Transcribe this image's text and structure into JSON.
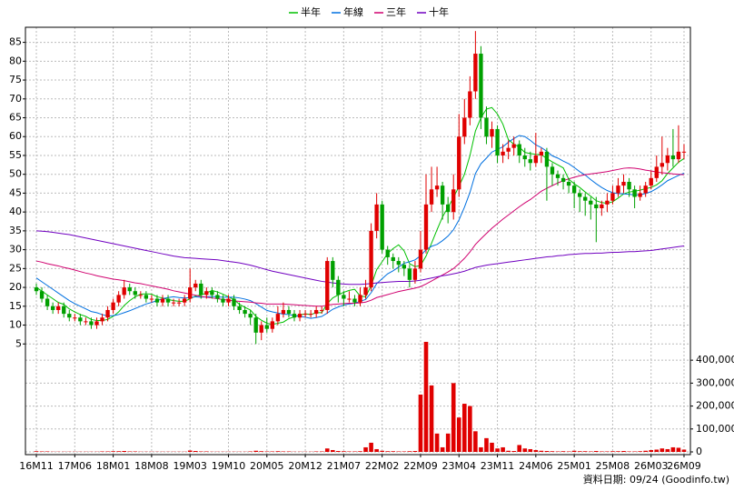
{
  "chart_data": {
    "type": "candlestick",
    "categories": [
      "16M11",
      null,
      null,
      null,
      null,
      null,
      null,
      "17M06",
      null,
      null,
      null,
      null,
      null,
      null,
      "18M01",
      null,
      null,
      null,
      null,
      null,
      null,
      "18M08",
      null,
      null,
      null,
      null,
      null,
      null,
      "19M03",
      null,
      null,
      null,
      null,
      null,
      null,
      "19M10",
      null,
      null,
      null,
      null,
      null,
      null,
      "20M05",
      null,
      null,
      null,
      null,
      null,
      null,
      "20M12",
      null,
      null,
      null,
      null,
      null,
      null,
      "21M07",
      null,
      null,
      null,
      null,
      null,
      null,
      "22M02",
      null,
      null,
      null,
      null,
      null,
      null,
      "22M09",
      null,
      null,
      null,
      null,
      null,
      null,
      "23M04",
      null,
      null,
      null,
      null,
      null,
      null,
      "23M11",
      null,
      null,
      null,
      null,
      null,
      null,
      "24M06",
      null,
      null,
      null,
      null,
      null,
      null,
      "25M01",
      null,
      null,
      null,
      null,
      null,
      null,
      "25M08",
      null,
      null,
      null,
      null,
      null,
      null,
      "26M03",
      null,
      null,
      null,
      null,
      null,
      "26M09"
    ],
    "open": [
      20,
      19,
      17,
      15,
      14,
      15,
      13,
      12,
      12,
      11,
      11,
      10,
      11,
      12,
      14,
      16,
      18,
      20,
      19,
      18,
      18,
      17,
      17,
      16,
      17,
      16,
      16,
      16,
      17,
      20,
      21,
      18,
      19,
      18,
      17,
      16,
      17,
      15,
      14,
      13,
      12,
      8,
      10,
      9,
      11,
      13,
      14,
      13,
      12,
      13,
      13,
      13,
      14,
      14,
      27,
      22,
      18,
      17,
      17,
      16,
      18,
      20,
      35,
      42,
      30,
      28,
      27,
      26,
      25,
      22,
      25,
      30,
      42,
      46,
      47,
      42,
      40,
      46,
      60,
      65,
      72,
      82,
      65,
      60,
      62,
      55,
      56,
      57,
      58,
      55,
      54,
      53,
      55,
      56,
      52,
      50,
      49,
      48,
      47,
      45,
      44,
      43,
      42,
      41,
      42,
      43,
      45,
      47,
      48,
      46,
      44,
      45,
      47,
      49,
      52,
      53,
      55,
      54,
      56
    ],
    "high": [
      21,
      20,
      18,
      16,
      16,
      16,
      14,
      13,
      13,
      12,
      12,
      12,
      13,
      15,
      17,
      19,
      22,
      21,
      20,
      19,
      19,
      18,
      18,
      18,
      18,
      17,
      17,
      18,
      25,
      22,
      22,
      20,
      20,
      19,
      18,
      18,
      18,
      16,
      15,
      14,
      13,
      11,
      12,
      12,
      15,
      16,
      15,
      14,
      14,
      14,
      14,
      15,
      15,
      28,
      28,
      23,
      19,
      19,
      18,
      20,
      22,
      37,
      45,
      43,
      31,
      29,
      28,
      27,
      26,
      27,
      35,
      50,
      52,
      52,
      48,
      44,
      50,
      66,
      70,
      76,
      88,
      84,
      68,
      64,
      63,
      58,
      59,
      60,
      59,
      57,
      56,
      61,
      57,
      57,
      53,
      51,
      50,
      49,
      48,
      46,
      45,
      44,
      44,
      43,
      45,
      47,
      49,
      50,
      49,
      47,
      47,
      48,
      51,
      55,
      60,
      57,
      62,
      63,
      58
    ],
    "low": [
      18,
      16,
      14,
      13,
      13,
      12,
      11,
      11,
      10,
      10,
      9,
      9,
      10,
      11,
      13,
      15,
      17,
      18,
      17,
      17,
      16,
      16,
      15,
      15,
      15,
      15,
      15,
      15,
      16,
      19,
      17,
      17,
      17,
      16,
      15,
      15,
      14,
      13,
      12,
      10,
      5,
      6,
      8,
      8,
      10,
      12,
      12,
      11,
      11,
      12,
      12,
      12,
      13,
      13,
      20,
      16,
      15,
      16,
      15,
      15,
      17,
      19,
      33,
      29,
      26,
      25,
      24,
      23,
      20,
      21,
      24,
      29,
      40,
      44,
      38,
      37,
      38,
      44,
      58,
      63,
      70,
      62,
      58,
      57,
      53,
      53,
      54,
      55,
      53,
      52,
      51,
      52,
      53,
      43,
      47,
      47,
      46,
      45,
      41,
      40,
      39,
      38,
      32,
      39,
      40,
      42,
      44,
      45,
      44,
      41,
      43,
      44,
      46,
      48,
      50,
      51,
      52,
      53,
      54
    ],
    "close": [
      19,
      17,
      15,
      14,
      15,
      13,
      12,
      12,
      11,
      11,
      10,
      11,
      12,
      14,
      16,
      18,
      20,
      19,
      18,
      18,
      17,
      17,
      16,
      17,
      16,
      16,
      16,
      17,
      20,
      21,
      18,
      19,
      18,
      17,
      16,
      17,
      15,
      14,
      13,
      12,
      8,
      10,
      9,
      11,
      13,
      14,
      13,
      12,
      13,
      13,
      13,
      14,
      14,
      27,
      22,
      18,
      17,
      17,
      16,
      18,
      20,
      35,
      42,
      30,
      28,
      27,
      26,
      25,
      22,
      25,
      30,
      42,
      46,
      47,
      42,
      40,
      46,
      60,
      65,
      72,
      82,
      65,
      60,
      62,
      55,
      56,
      57,
      58,
      55,
      54,
      53,
      55,
      56,
      52,
      50,
      49,
      48,
      47,
      45,
      44,
      43,
      42,
      41,
      42,
      43,
      45,
      47,
      48,
      46,
      44,
      45,
      47,
      49,
      52,
      53,
      55,
      54,
      56,
      56
    ],
    "up_color": "#e00000",
    "down_color": "#00a000",
    "ylim": [
      0,
      89
    ],
    "yticks": [
      5,
      10,
      15,
      20,
      25,
      30,
      35,
      40,
      45,
      50,
      55,
      60,
      65,
      70,
      75,
      80,
      85
    ],
    "grid": true,
    "legend": "top",
    "series": [
      {
        "name": "半年",
        "color": "#00c000",
        "values": [
          20,
          19,
          18,
          17,
          16,
          15.5,
          14.3,
          13.5,
          12.8,
          12.3,
          11.5,
          11.2,
          11.2,
          11.5,
          12.3,
          13.5,
          15.2,
          16.5,
          17.5,
          18.2,
          18.3,
          18.2,
          17.5,
          17.2,
          16.8,
          16.5,
          16.3,
          16.3,
          17,
          17.7,
          18,
          18.5,
          19.2,
          18.8,
          18.2,
          17.5,
          16.8,
          15.5,
          14.7,
          14,
          12.3,
          11.3,
          10.5,
          10.2,
          10.5,
          10.8,
          11.7,
          12.2,
          12.7,
          13,
          12.8,
          13.3,
          13.3,
          15.7,
          17.2,
          18,
          18.7,
          19.2,
          19.5,
          17.7,
          17.5,
          20.5,
          24.7,
          26.8,
          29,
          30.3,
          31.3,
          29.7,
          26.3,
          25.5,
          25.8,
          28.3,
          31.7,
          35.3,
          38.7,
          41.2,
          43.8,
          46.8,
          50,
          55,
          61.5,
          65,
          67.3,
          67.7,
          66,
          63.3,
          59.2,
          58,
          57.2,
          55.8,
          55.5,
          55.3,
          55.2,
          54.2,
          53.3,
          52.5,
          51.7,
          48.7,
          47.5,
          46.5,
          45.3,
          44.2,
          43,
          42.5,
          42.3,
          42.7,
          43.7,
          44.8,
          45.3,
          45.5,
          45.8,
          46.2,
          46.5,
          47.2,
          48.3,
          50.2,
          51.7,
          53.2,
          54.2
        ]
      },
      {
        "name": "年線",
        "color": "#0070e0",
        "values": [
          22.5,
          21.5,
          20.5,
          19.5,
          18.5,
          17.5,
          16.5,
          15.7,
          15,
          14.3,
          13.6,
          13.3,
          12.8,
          12.4,
          12.5,
          12.8,
          13.3,
          13.8,
          14.4,
          15,
          15.6,
          16,
          16.5,
          17,
          17.3,
          17.5,
          17.3,
          17.2,
          17.3,
          17.5,
          17.4,
          17.5,
          17.6,
          17.5,
          17.4,
          17.4,
          17.4,
          17.2,
          16.9,
          16.5,
          15.7,
          14.8,
          13.9,
          13.5,
          13.2,
          12.9,
          12.8,
          12.5,
          12.3,
          12.1,
          11.8,
          12,
          12.3,
          13.2,
          14.2,
          14.8,
          15.3,
          15.6,
          15.8,
          16.3,
          16.8,
          18.6,
          21,
          22.3,
          23.6,
          24.4,
          25.4,
          26.4,
          26.8,
          27.3,
          28.4,
          30,
          30.9,
          31.4,
          32.4,
          33.6,
          35.3,
          37.9,
          41.3,
          45.2,
          50.2,
          52.8,
          54.3,
          55.9,
          56.6,
          57.3,
          58.5,
          59.5,
          60.3,
          60,
          59,
          57.8,
          57.1,
          56.1,
          54.9,
          54.3,
          53.5,
          52.8,
          51.8,
          50.7,
          49.8,
          48.6,
          47.5,
          46.5,
          45.7,
          45.1,
          44.9,
          44.8,
          44.7,
          44.5,
          44.6,
          44.9,
          45.4,
          46.2,
          47.2,
          48.3,
          49,
          49.7,
          50.3
        ]
      },
      {
        "name": "三年",
        "color": "#d0006f",
        "values": [
          27,
          26.7,
          26.3,
          26,
          25.7,
          25.3,
          25,
          24.6,
          24.2,
          23.8,
          23.5,
          23.1,
          22.8,
          22.5,
          22.2,
          22,
          21.8,
          21.5,
          21.2,
          21,
          20.7,
          20.4,
          20.1,
          19.8,
          19.5,
          19.1,
          18.8,
          18.5,
          18.2,
          17.9,
          17.6,
          17.4,
          17.2,
          17,
          16.8,
          16.6,
          16.4,
          16.3,
          16.2,
          16.1,
          15.9,
          15.8,
          15.6,
          15.6,
          15.6,
          15.6,
          15.5,
          15.4,
          15.3,
          15.2,
          15.1,
          15,
          15,
          15.3,
          15.5,
          15.6,
          15.7,
          15.8,
          15.8,
          15.9,
          16.1,
          16.6,
          17.3,
          17.7,
          18.1,
          18.5,
          18.9,
          19.2,
          19.5,
          19.8,
          20.2,
          20.9,
          21.7,
          22.5,
          23.3,
          24.1,
          25,
          26.3,
          27.7,
          29.4,
          31.4,
          32.9,
          34.3,
          35.7,
          36.9,
          38.1,
          39.2,
          40.3,
          41.4,
          42.4,
          43.3,
          44.4,
          45.5,
          46.3,
          47,
          47.7,
          48.3,
          48.8,
          49.2,
          49.6,
          49.9,
          50.1,
          50.3,
          50.5,
          50.7,
          51,
          51.3,
          51.6,
          51.7,
          51.6,
          51.4,
          51.1,
          50.9,
          50.6,
          50.4,
          50.3,
          50.1,
          50,
          49.9
        ]
      },
      {
        "name": "十年",
        "color": "#7000c0",
        "values": [
          35,
          34.9,
          34.8,
          34.6,
          34.4,
          34.2,
          34,
          33.7,
          33.4,
          33.1,
          32.8,
          32.5,
          32.2,
          31.9,
          31.6,
          31.3,
          31,
          30.7,
          30.4,
          30.1,
          29.8,
          29.5,
          29.2,
          28.9,
          28.6,
          28.3,
          28.1,
          27.9,
          27.8,
          27.7,
          27.6,
          27.5,
          27.4,
          27.3,
          27.1,
          26.9,
          26.7,
          26.5,
          26.2,
          25.9,
          25.5,
          25.1,
          24.7,
          24.3,
          24,
          23.7,
          23.4,
          23.1,
          22.8,
          22.5,
          22.2,
          21.9,
          21.6,
          21.4,
          21.2,
          21,
          20.9,
          20.8,
          20.8,
          20.8,
          20.9,
          21,
          21.2,
          21.3,
          21.4,
          21.5,
          21.6,
          21.6,
          21.6,
          21.7,
          21.9,
          22.2,
          22.5,
          22.8,
          23.1,
          23.3,
          23.6,
          23.9,
          24.3,
          24.8,
          25.3,
          25.6,
          25.9,
          26.1,
          26.3,
          26.5,
          26.7,
          26.9,
          27.1,
          27.3,
          27.5,
          27.7,
          27.9,
          28.1,
          28.2,
          28.4,
          28.5,
          28.7,
          28.8,
          28.9,
          29,
          29,
          29.1,
          29.1,
          29.2,
          29.3,
          29.3,
          29.4,
          29.5,
          29.5,
          29.6,
          29.7,
          29.8,
          30,
          30.2,
          30.4,
          30.6,
          30.8,
          31
        ]
      }
    ],
    "volume": {
      "axis": "y2",
      "color": "#e00000",
      "values": [
        3000,
        2000,
        2000,
        1000,
        1000,
        1000,
        1000,
        1000,
        1000,
        1000,
        1000,
        1000,
        2000,
        2000,
        3000,
        3000,
        4000,
        2000,
        2000,
        1000,
        1000,
        1000,
        1000,
        1000,
        1000,
        1000,
        1000,
        1000,
        6000,
        4000,
        2000,
        2000,
        1000,
        1000,
        1000,
        1000,
        1000,
        1000,
        1000,
        2000,
        5000,
        3000,
        2000,
        2000,
        3000,
        2000,
        2000,
        1000,
        1000,
        1000,
        1000,
        2000,
        2000,
        15000,
        8000,
        4000,
        3000,
        2000,
        2000,
        3000,
        20000,
        40000,
        12000,
        5000,
        3000,
        3000,
        2000,
        2000,
        3000,
        4000,
        250000,
        480000,
        290000,
        80000,
        20000,
        80000,
        300000,
        150000,
        210000,
        200000,
        90000,
        20000,
        60000,
        40000,
        15000,
        20000,
        5000,
        4000,
        30000,
        15000,
        12000,
        8000,
        5000,
        4000,
        3000,
        2000,
        3000,
        2000,
        5000,
        3000,
        3000,
        2000,
        4000,
        2000,
        2000,
        3000,
        3000,
        4000,
        2000,
        2000,
        3000,
        5000,
        8000,
        10000,
        15000,
        12000,
        20000,
        18000,
        10000
      ]
    },
    "y2lim": [
      0,
      464000
    ],
    "y2ticks": [
      0,
      {
        "value": 100000,
        "label": "100,000"
      },
      {
        "value": 200000,
        "label": "200,000"
      },
      {
        "value": 300000,
        "label": "300,000"
      },
      {
        "value": 400000,
        "label": "400,000"
      }
    ],
    "footer": "資料日期: 09/24 (Goodinfo.tw)"
  }
}
